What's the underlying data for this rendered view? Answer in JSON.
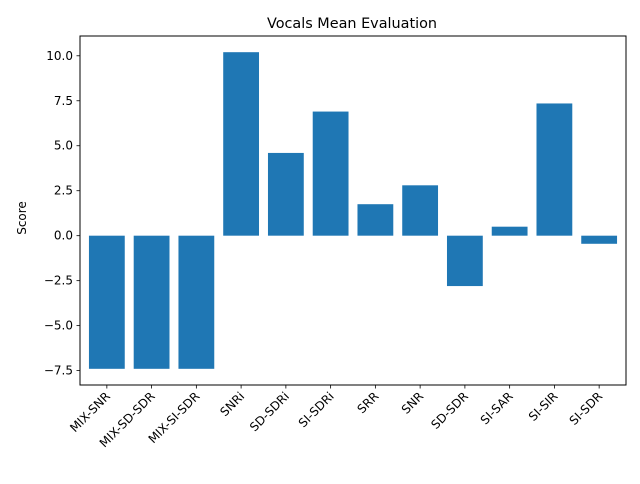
{
  "chart_data": {
    "type": "bar",
    "title": "Vocals Mean Evaluation",
    "xlabel": "",
    "ylabel": "Score",
    "categories": [
      "MIX-SNR",
      "MIX-SD-SDR",
      "MIX-SI-SDR",
      "SNRi",
      "SD-SDRi",
      "SI-SDRi",
      "SRR",
      "SNR",
      "SD-SDR",
      "SI-SAR",
      "SI-SIR",
      "SI-SDR"
    ],
    "values": [
      -7.4,
      -7.4,
      -7.4,
      10.2,
      4.6,
      6.9,
      1.75,
      2.8,
      -2.8,
      0.5,
      7.35,
      -0.45
    ],
    "ylim": [
      -8.3,
      11.1
    ],
    "yticks": [
      -7.5,
      -5.0,
      -2.5,
      0.0,
      2.5,
      5.0,
      7.5,
      10.0
    ],
    "ytick_labels": [
      "−7.5",
      "−5.0",
      "−2.5",
      "0.0",
      "2.5",
      "5.0",
      "7.5",
      "10.0"
    ],
    "grid": false,
    "legend": "none",
    "bar_color": "#1f77b4"
  }
}
